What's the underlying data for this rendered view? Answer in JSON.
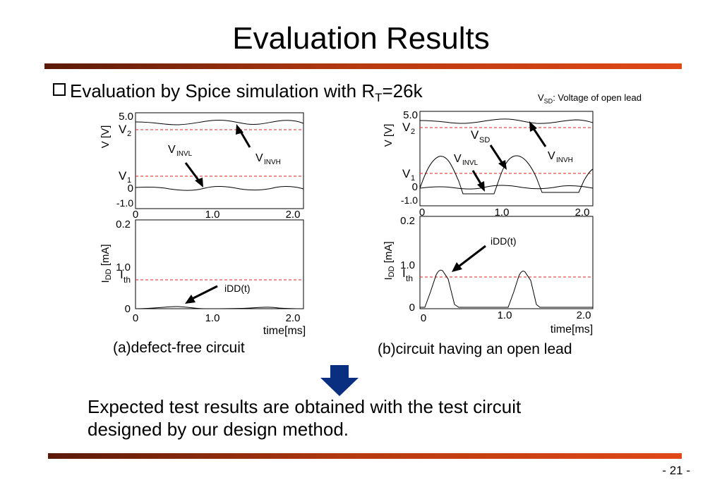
{
  "slide": {
    "title": "Evaluation Results",
    "bullet": {
      "text_main": "Evaluation by Spice simulation with R",
      "sub": "T",
      "text_tail": "=26k"
    },
    "note": {
      "v": "V",
      "sub": "SD",
      "rest": ": Voltage of open lead"
    },
    "captions": {
      "a": "(a)defect-free circuit",
      "b": "(b)circuit having an open lead"
    },
    "conclusion": {
      "line1": "Expected test results are obtained with the test circuit",
      "line2": "designed by our design method."
    },
    "page_number": "- 21 -",
    "accent_colors": {
      "bar_dark": "#5a1a08",
      "bar_light": "#e04818",
      "arrow_blue": "#0a2f80",
      "threshold_red": "#e02020"
    }
  },
  "figure": {
    "v_axis_label": "V [V]",
    "i_axis_label_main": "I",
    "i_axis_label_sub": "DD",
    "i_axis_label_unit": " [mA]",
    "x_axis_label": "time[ms]",
    "v_ticks": {
      "top": "5.0",
      "v2_main": "V",
      "v2_sub": "2",
      "v1_main": "V",
      "v1_sub": "1",
      "zero": "0",
      "bottom": "-1.0"
    },
    "i_ticks": {
      "top": "0.2",
      "mid": "1.0",
      "ith_main": "I",
      "ith_sub": "th",
      "zero": "0"
    },
    "x_ticks": [
      "0",
      "1.0",
      "2.0"
    ],
    "labels": {
      "vinvl_main": "V",
      "vinvl_sub": "INVL",
      "vinvh_main": "V",
      "vinvh_sub": "INVH",
      "vsd_main": "V",
      "vsd_sub": "SD",
      "idd": "iDD(t)"
    }
  }
}
